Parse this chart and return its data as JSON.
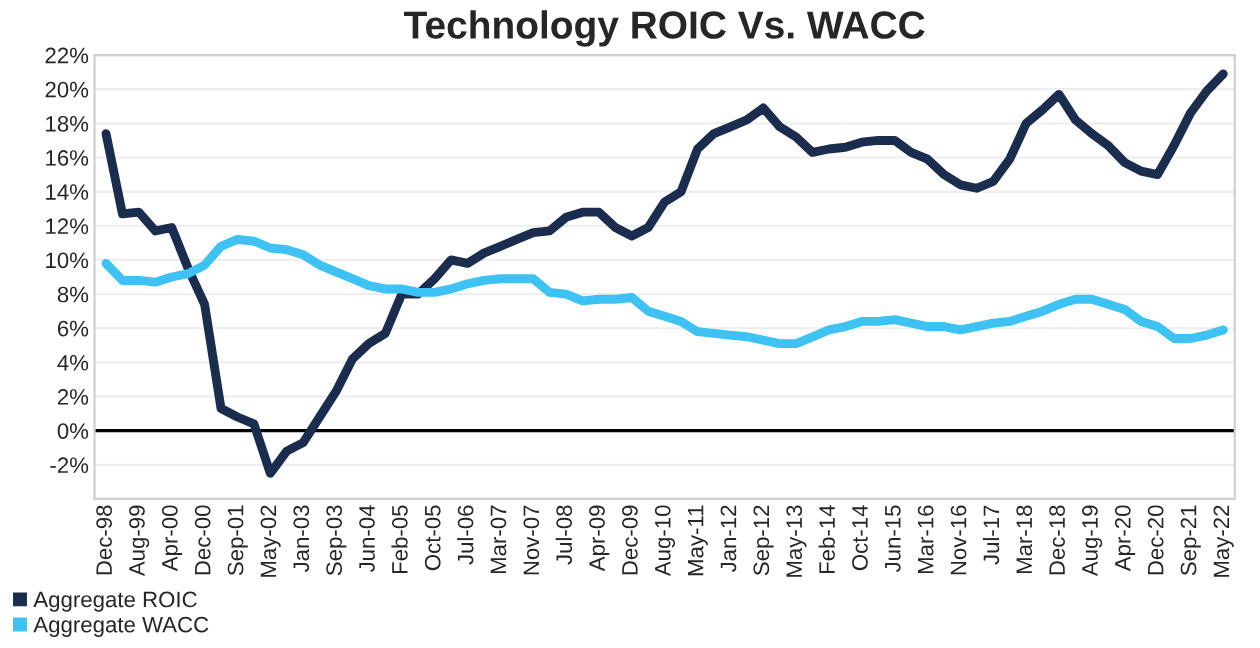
{
  "chart_data": {
    "type": "line",
    "title": "Technology ROIC Vs. WACC",
    "categories": [
      "Dec-98",
      null,
      "Aug-99",
      null,
      "Apr-00",
      null,
      "Dec-00",
      null,
      "Sep-01",
      null,
      "May-02",
      null,
      "Jan-03",
      null,
      "Sep-03",
      null,
      "Jun-04",
      null,
      "Feb-05",
      null,
      "Oct-05",
      null,
      "Jul-06",
      null,
      "Mar-07",
      null,
      "Nov-07",
      null,
      "Jul-08",
      null,
      "Apr-09",
      null,
      "Dec-09",
      null,
      "Aug-10",
      null,
      "May-11",
      null,
      "Jan-12",
      null,
      "Sep-12",
      null,
      "May-13",
      null,
      "Feb-14",
      null,
      "Oct-14",
      null,
      "Jun-15",
      null,
      "Mar-16",
      null,
      "Nov-16",
      null,
      "Jul-17",
      null,
      "Mar-18",
      null,
      "Dec-18",
      null,
      "Aug-19",
      null,
      "Apr-20",
      null,
      "Dec-20",
      null,
      "Sep-21",
      null,
      "May-22"
    ],
    "series": [
      {
        "name": "Aggregate ROIC",
        "color": "#1b2d4f",
        "values": [
          17.4,
          12.7,
          12.8,
          11.7,
          11.9,
          9.5,
          7.4,
          1.3,
          0.8,
          0.4,
          -2.5,
          -1.2,
          -0.7,
          0.8,
          2.3,
          4.2,
          5.1,
          5.7,
          8.0,
          8.0,
          8.9,
          10.0,
          9.8,
          10.4,
          10.8,
          11.2,
          11.6,
          11.7,
          12.5,
          12.8,
          12.8,
          11.9,
          11.4,
          11.9,
          13.4,
          14.0,
          16.5,
          17.4,
          17.8,
          18.2,
          18.9,
          17.8,
          17.2,
          16.3,
          16.5,
          16.6,
          16.9,
          17.0,
          17.0,
          16.3,
          15.9,
          15.0,
          14.4,
          14.2,
          14.6,
          15.9,
          18.0,
          18.8,
          19.7,
          18.2,
          17.4,
          16.7,
          15.7,
          15.2,
          15.0,
          16.7,
          18.6,
          19.9,
          20.9
        ]
      },
      {
        "name": "Aggregate WACC",
        "color": "#3ec1f3",
        "values": [
          9.8,
          8.8,
          8.8,
          8.7,
          9.0,
          9.2,
          9.7,
          10.8,
          11.2,
          11.1,
          10.7,
          10.6,
          10.3,
          9.7,
          9.3,
          8.9,
          8.5,
          8.3,
          8.3,
          8.1,
          8.1,
          8.3,
          8.6,
          8.8,
          8.9,
          8.9,
          8.9,
          8.1,
          8.0,
          7.6,
          7.7,
          7.7,
          7.8,
          7.0,
          6.7,
          6.4,
          5.8,
          5.7,
          5.6,
          5.5,
          5.3,
          5.1,
          5.1,
          5.5,
          5.9,
          6.1,
          6.4,
          6.4,
          6.5,
          6.3,
          6.1,
          6.1,
          5.9,
          6.1,
          6.3,
          6.4,
          6.7,
          7.0,
          7.4,
          7.7,
          7.7,
          7.4,
          7.1,
          6.4,
          6.1,
          5.4,
          5.4,
          5.6,
          5.9
        ]
      }
    ],
    "ylim": [
      -4,
      22
    ],
    "yticks": [
      {
        "value": -2,
        "label": "-2%"
      },
      {
        "value": 0,
        "label": "0%"
      },
      {
        "value": 2,
        "label": "2%"
      },
      {
        "value": 4,
        "label": "4%"
      },
      {
        "value": 6,
        "label": "6%"
      },
      {
        "value": 8,
        "label": "8%"
      },
      {
        "value": 10,
        "label": "10%"
      },
      {
        "value": 12,
        "label": "12%"
      },
      {
        "value": 14,
        "label": "14%"
      },
      {
        "value": 16,
        "label": "16%"
      },
      {
        "value": 18,
        "label": "18%"
      },
      {
        "value": 20,
        "label": "20%"
      },
      {
        "value": 22,
        "label": "22%"
      }
    ],
    "ref_lines": [
      {
        "axis": "y",
        "value": 0,
        "color": "#000000"
      }
    ],
    "grid": "y",
    "legend": "bottom left",
    "marker": "none",
    "line_style": "solid"
  }
}
